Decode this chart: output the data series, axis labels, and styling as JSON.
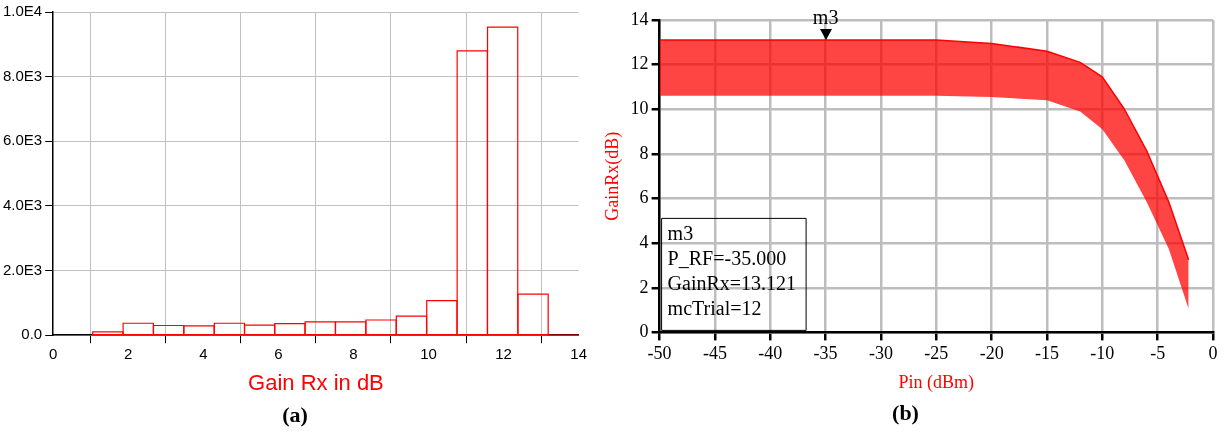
{
  "chart_data": [
    {
      "type": "histogram",
      "title": "(a)",
      "xlabel": "Gain Rx in dB",
      "color": "#ff0000",
      "bins": [
        1.05,
        1.86,
        2.67,
        3.48,
        4.29,
        5.1,
        5.9,
        6.71,
        7.52,
        8.33,
        9.14,
        9.95,
        10.76,
        11.57,
        12.38,
        13.19,
        14.0
      ],
      "values": [
        100,
        370,
        300,
        290,
        370,
        310,
        360,
        410,
        410,
        470,
        590,
        1070,
        8800,
        9530,
        1270,
        0
      ],
      "xlim": [
        0,
        14
      ],
      "xticks": [
        0,
        2,
        4,
        6,
        8,
        10,
        12,
        14
      ],
      "ylim": [
        0,
        10000
      ],
      "yticks": [
        {
          "value": 0,
          "label": "0.0"
        },
        {
          "value": 2000,
          "label": "2.0E3"
        },
        {
          "value": 4000,
          "label": "4.0E3"
        },
        {
          "value": 6000,
          "label": "6.0E3"
        },
        {
          "value": 8000,
          "label": "8.0E3"
        },
        {
          "value": 10000,
          "label": "1.0E4"
        }
      ],
      "grid": true,
      "legend": false
    },
    {
      "type": "line",
      "title": "(b)",
      "xlabel": "Pin (dBm)",
      "ylabel": "GainRx(dB)",
      "x": [
        -50,
        -45,
        -40,
        -35,
        -30,
        -25,
        -20,
        -15,
        -12,
        -10,
        -8,
        -6,
        -4,
        -2.2
      ],
      "series": [
        {
          "color": "#ff0000",
          "values": [
            13.1,
            13.1,
            13.1,
            13.1,
            13.1,
            13.1,
            12.95,
            12.6,
            12.1,
            11.45,
            10.0,
            8.15,
            5.85,
            3.25
          ],
          "lower": [
            10.6,
            10.6,
            10.6,
            10.6,
            10.6,
            10.6,
            10.55,
            10.4,
            9.9,
            9.1,
            7.7,
            5.85,
            3.75,
            1.05
          ],
          "upper": [
            13.1,
            13.1,
            13.1,
            13.1,
            13.1,
            13.1,
            12.95,
            12.6,
            12.1,
            11.45,
            10.0,
            8.15,
            5.85,
            3.25
          ]
        }
      ],
      "xlim": [
        -50,
        0
      ],
      "xticks": [
        -50,
        -45,
        -40,
        -35,
        -30,
        -25,
        -20,
        -15,
        -10,
        -5,
        0
      ],
      "ylim": [
        0,
        14
      ],
      "yticks": [
        0,
        2,
        4,
        6,
        8,
        10,
        12,
        14
      ],
      "grid": true,
      "legend": false,
      "marker": "none",
      "annotations": [
        {
          "text": "m3",
          "x": -35,
          "y": 13.121
        },
        "m3",
        "P_RF=-35.000",
        "GainRx=13.121",
        "mcTrial=12"
      ]
    }
  ]
}
